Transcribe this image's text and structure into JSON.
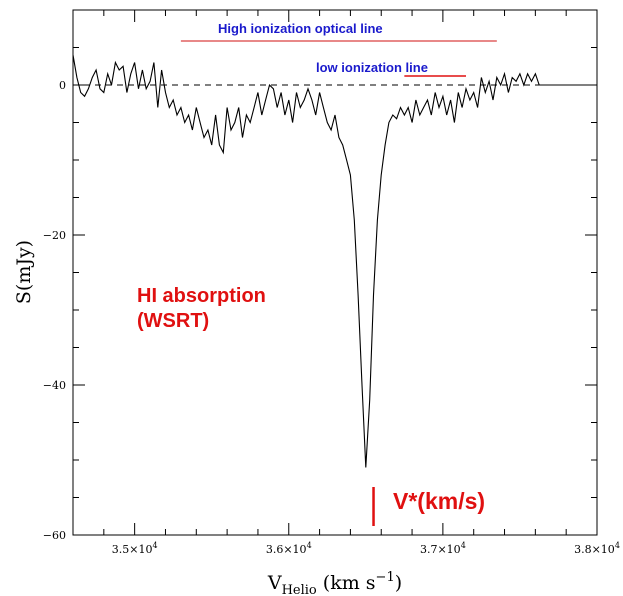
{
  "chart_data": {
    "type": "line",
    "xlabel": "V",
    "xlabel_sub": "Helio",
    "xlabel_units": " (km s",
    "xlabel_units_sup": "−1",
    "xlabel_close": ")",
    "ylabel": "S(mJy)",
    "xlim": [
      34600,
      38000
    ],
    "ylim": [
      -60,
      10
    ],
    "x_ticks": [
      {
        "value": 35000,
        "mant": "3.5×10",
        "exp": "4"
      },
      {
        "value": 36000,
        "mant": "3.6×10",
        "exp": "4"
      },
      {
        "value": 37000,
        "mant": "3.7×10",
        "exp": "4"
      },
      {
        "value": 38000,
        "mant": "3.8×10",
        "exp": "4"
      }
    ],
    "y_ticks": [
      {
        "value": 0,
        "label": "0"
      },
      {
        "value": -20,
        "label": "−20"
      },
      {
        "value": -40,
        "label": "−40"
      },
      {
        "value": -60,
        "label": "−60"
      }
    ],
    "grid": false,
    "zero_line": 0,
    "series": [
      {
        "color": "#000000",
        "x": [
          34600,
          34625,
          34650,
          34675,
          34700,
          34725,
          34750,
          34775,
          34800,
          34825,
          34850,
          34875,
          34900,
          34925,
          34950,
          34975,
          35000,
          35025,
          35050,
          35075,
          35100,
          35125,
          35150,
          35175,
          35200,
          35225,
          35250,
          35275,
          35300,
          35325,
          35350,
          35375,
          35400,
          35425,
          35450,
          35475,
          35500,
          35525,
          35550,
          35575,
          35600,
          35625,
          35650,
          35675,
          35700,
          35725,
          35750,
          35775,
          35800,
          35825,
          35850,
          35875,
          35900,
          35925,
          35950,
          35975,
          36000,
          36025,
          36050,
          36075,
          36100,
          36125,
          36150,
          36175,
          36200,
          36225,
          36250,
          36275,
          36300,
          36325,
          36350,
          36375,
          36400,
          36425,
          36450,
          36475,
          36500,
          36525,
          36550,
          36575,
          36600,
          36625,
          36650,
          36675,
          36700,
          36725,
          36750,
          36775,
          36800,
          36825,
          36850,
          36875,
          36900,
          36925,
          36950,
          36975,
          37000,
          37025,
          37050,
          37075,
          37100,
          37125,
          37150,
          37175,
          37200,
          37225,
          37250,
          37275,
          37300,
          37325,
          37350,
          37375,
          37400,
          37425,
          37450,
          37475,
          37500,
          37525,
          37550,
          37575,
          37600,
          37625,
          37650,
          37700,
          37750,
          37800,
          37850,
          37900,
          37950,
          38000
        ],
        "y": [
          4,
          1,
          -1,
          -1.5,
          -0.5,
          1,
          2,
          -0.5,
          -1,
          1.5,
          0,
          3,
          2,
          2.5,
          -1,
          1.5,
          3,
          -0.5,
          2,
          -0.5,
          0.5,
          3,
          -3,
          2,
          -1,
          -3,
          -2,
          -4,
          -3,
          -5,
          -4,
          -6,
          -3,
          -5,
          -7,
          -6,
          -8,
          -4,
          -8,
          -9,
          -3,
          -6,
          -5,
          -3,
          -7,
          -4,
          -5,
          -3,
          -1,
          -4,
          -2,
          0,
          -0.5,
          -3,
          -1,
          -4,
          -2,
          -5,
          -1,
          -3,
          -2,
          -0.5,
          -2,
          -4,
          -1,
          -3,
          -5,
          -6,
          -4,
          -7,
          -8,
          -10,
          -12,
          -18,
          -28,
          -40,
          -51,
          -42,
          -28,
          -18,
          -12,
          -8,
          -5,
          -4,
          -4.5,
          -3,
          -4,
          -3,
          -5,
          -2,
          -4,
          -3,
          -2,
          -4,
          -1,
          -3,
          -1.5,
          -4,
          -2,
          -5,
          -1,
          -3,
          -0.5,
          -2,
          -1,
          -3,
          1,
          -1,
          0.5,
          -2,
          1,
          0,
          1.5,
          -1,
          1,
          0.5,
          1.5,
          0,
          1.5,
          0.5,
          1.5,
          0,
          0,
          0,
          0,
          0,
          0,
          0,
          0,
          0
        ]
      }
    ]
  },
  "annotations": {
    "high_ion": "High ionization optical line",
    "high_ion_range": [
      35300,
      37350
    ],
    "low_ion": "low ionization line",
    "low_ion_range": [
      36750,
      37150
    ],
    "hi_line1": "HI absorption",
    "hi_line2": "(WSRT)",
    "vstar": "V*(km/s)",
    "vstar_value": 36550
  }
}
